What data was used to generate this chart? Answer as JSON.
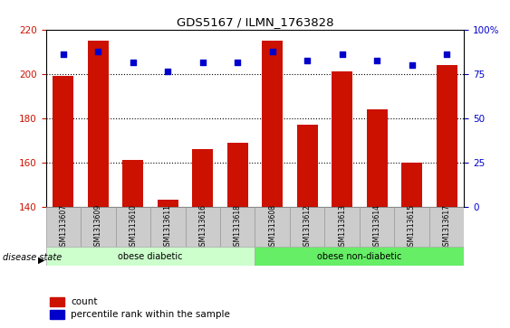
{
  "title": "GDS5167 / ILMN_1763828",
  "samples": [
    "GSM1313607",
    "GSM1313609",
    "GSM1313610",
    "GSM1313611",
    "GSM1313616",
    "GSM1313618",
    "GSM1313608",
    "GSM1313612",
    "GSM1313613",
    "GSM1313614",
    "GSM1313615",
    "GSM1313617"
  ],
  "bar_values": [
    199,
    215,
    161,
    143,
    166,
    169,
    215,
    177,
    201,
    184,
    160,
    204
  ],
  "dot_yvalues": [
    209,
    210,
    205,
    201,
    205,
    205,
    210,
    206,
    209,
    206,
    204,
    209
  ],
  "bar_bottom": 140,
  "ylim_left": [
    140,
    220
  ],
  "ylim_right": [
    0,
    100
  ],
  "yticks_left": [
    140,
    160,
    180,
    200,
    220
  ],
  "yticks_right": [
    0,
    25,
    50,
    75,
    100
  ],
  "bar_color": "#cc1100",
  "dot_color": "#0000cc",
  "group1_label": "obese diabetic",
  "group2_label": "obese non-diabetic",
  "group1_count": 6,
  "group2_count": 6,
  "disease_state_label": "disease state",
  "legend_count_label": "count",
  "legend_percentile_label": "percentile rank within the sample",
  "group1_color": "#ccffcc",
  "group2_color": "#66ee66",
  "gridline_color": "black",
  "tick_label_color_left": "#cc1100",
  "tick_label_color_right": "#0000cc",
  "xticklabel_bg": "#cccccc",
  "bar_width": 0.6
}
